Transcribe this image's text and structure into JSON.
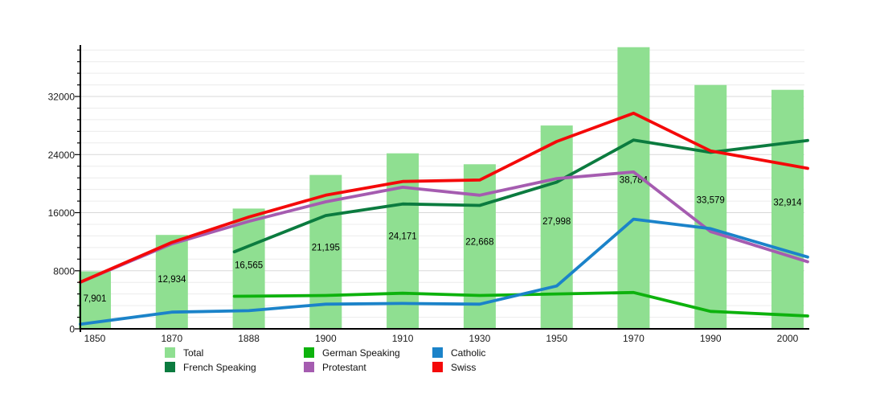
{
  "chart_data": {
    "type": "bar+line",
    "title": "",
    "xlabel": "",
    "ylabel": "",
    "categories": [
      "1850",
      "1870",
      "1888",
      "1900",
      "1910",
      "1930",
      "1950",
      "1970",
      "1990",
      "2000"
    ],
    "bar_series": {
      "name": "Total",
      "color": "#8fdf91",
      "values": [
        7901,
        12934,
        16565,
        21195,
        24171,
        22668,
        27998,
        38784,
        33579,
        32914
      ],
      "labels": [
        "7,901",
        "12,934",
        "16,565",
        "21,195",
        "24,171",
        "22,668",
        "27,998",
        "38,784",
        "33,579",
        "32,914"
      ]
    },
    "line_series": [
      {
        "name": "French Speaking",
        "color": "#0b7b3f",
        "values": [
          null,
          null,
          11400,
          15600,
          17200,
          17000,
          20200,
          26000,
          24300,
          25600
        ]
      },
      {
        "name": "German Speaking",
        "color": "#0db20d",
        "values": [
          null,
          null,
          4500,
          4600,
          4900,
          4600,
          4800,
          5000,
          2400,
          1900
        ]
      },
      {
        "name": "Protestant",
        "color": "#a55cb0",
        "values": [
          7250,
          11700,
          14800,
          17500,
          19500,
          18400,
          20700,
          21600,
          13400,
          10100
        ]
      },
      {
        "name": "Catholic",
        "color": "#1b83c9",
        "values": [
          900,
          2300,
          2500,
          3400,
          3500,
          3400,
          5900,
          15100,
          13800,
          10700
        ]
      },
      {
        "name": "Swiss",
        "color": "#f40909",
        "values": [
          7300,
          11900,
          15400,
          18400,
          20300,
          20500,
          25800,
          29700,
          24500,
          22600
        ]
      }
    ],
    "y_axis": {
      "major_tick_labels": [
        "0",
        "8000",
        "16000",
        "24000",
        "32000"
      ],
      "major_tick_values": [
        0,
        8000,
        16000,
        24000,
        32000
      ],
      "minor_step": 1600,
      "max_drawn": 38400
    },
    "legend": [
      {
        "label": "Total",
        "color": "#8fdf91"
      },
      {
        "label": "French Speaking",
        "color": "#0b7b3f"
      },
      {
        "label": "German Speaking",
        "color": "#0db20d"
      },
      {
        "label": "Protestant",
        "color": "#a55cb0"
      },
      {
        "label": "Catholic",
        "color": "#1b83c9"
      },
      {
        "label": "Swiss",
        "color": "#f40909"
      }
    ],
    "grid": {
      "minor_color": "#ececec",
      "major_color": "#d8d8d8",
      "axis_color": "#000000"
    }
  }
}
